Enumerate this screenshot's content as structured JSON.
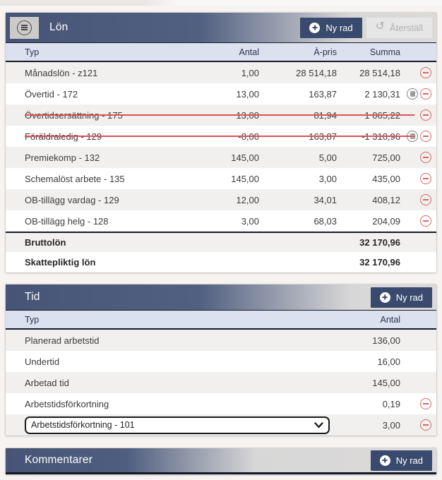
{
  "colors": {
    "header_navy": "#475476",
    "button_navy": "#3a4a6e",
    "column_header_blue": "#dce1ef",
    "row_alt_gray": "#f1f0ee",
    "delete_red": "#d46a66",
    "strike_red": "#d95353"
  },
  "lon": {
    "title": "Lön",
    "buttons": {
      "ny_rad": "Ny rad",
      "aterstall": "Återställ"
    },
    "columns": {
      "typ": "Typ",
      "antal": "Antal",
      "apris": "À-pris",
      "summa": "Summa"
    },
    "rows": [
      {
        "typ": "Månadslön - z121",
        "antal": "1,00",
        "apris": "28 514,18",
        "summa": "28 514,18",
        "note": false,
        "strike": false
      },
      {
        "typ": "Övertid - 172",
        "antal": "13,00",
        "apris": "163,87",
        "summa": "2 130,31",
        "note": true,
        "strike": false
      },
      {
        "typ": "Övertidsersättning - 175",
        "antal": "13,00",
        "apris": "81,94",
        "summa": "1 065,22",
        "note": false,
        "strike": true
      },
      {
        "typ": "Föräldraledig - 129",
        "antal": "-8,00",
        "apris": "163,87",
        "summa": "-1 310,96",
        "note": true,
        "strike": true
      },
      {
        "typ": "Premiekomp - 132",
        "antal": "145,00",
        "apris": "5,00",
        "summa": "725,00",
        "note": false,
        "strike": false
      },
      {
        "typ": "Schemalöst arbete - 135",
        "antal": "145,00",
        "apris": "3,00",
        "summa": "435,00",
        "note": false,
        "strike": false
      },
      {
        "typ": "OB-tillägg vardag - 129",
        "antal": "12,00",
        "apris": "34,01",
        "summa": "408,12",
        "note": false,
        "strike": false
      },
      {
        "typ": "OB-tillägg helg - 128",
        "antal": "3,00",
        "apris": "68,03",
        "summa": "204,09",
        "note": false,
        "strike": false
      }
    ],
    "totals": [
      {
        "label": "Bruttolön",
        "value": "32 170,96"
      },
      {
        "label": "Skattepliktig lön",
        "value": "32 170,96"
      }
    ]
  },
  "tid": {
    "title": "Tid",
    "buttons": {
      "ny_rad": "Ny rad"
    },
    "columns": {
      "typ": "Typ",
      "antal": "Antal"
    },
    "rows": [
      {
        "typ": "Planerad arbetstid",
        "antal": "136,00",
        "deletable": false,
        "select": false
      },
      {
        "typ": "Undertid",
        "antal": "16,00",
        "deletable": false,
        "select": false
      },
      {
        "typ": "Arbetad tid",
        "antal": "145,00",
        "deletable": false,
        "select": false
      },
      {
        "typ": "Arbetstidsförkortning",
        "antal": "0,19",
        "deletable": true,
        "select": false
      },
      {
        "typ": "Arbetstidsförkortning - 101",
        "antal": "3,00",
        "deletable": true,
        "select": true
      }
    ]
  },
  "kommentarer": {
    "title": "Kommentarer",
    "buttons": {
      "ny_rad": "Ny rad"
    }
  }
}
